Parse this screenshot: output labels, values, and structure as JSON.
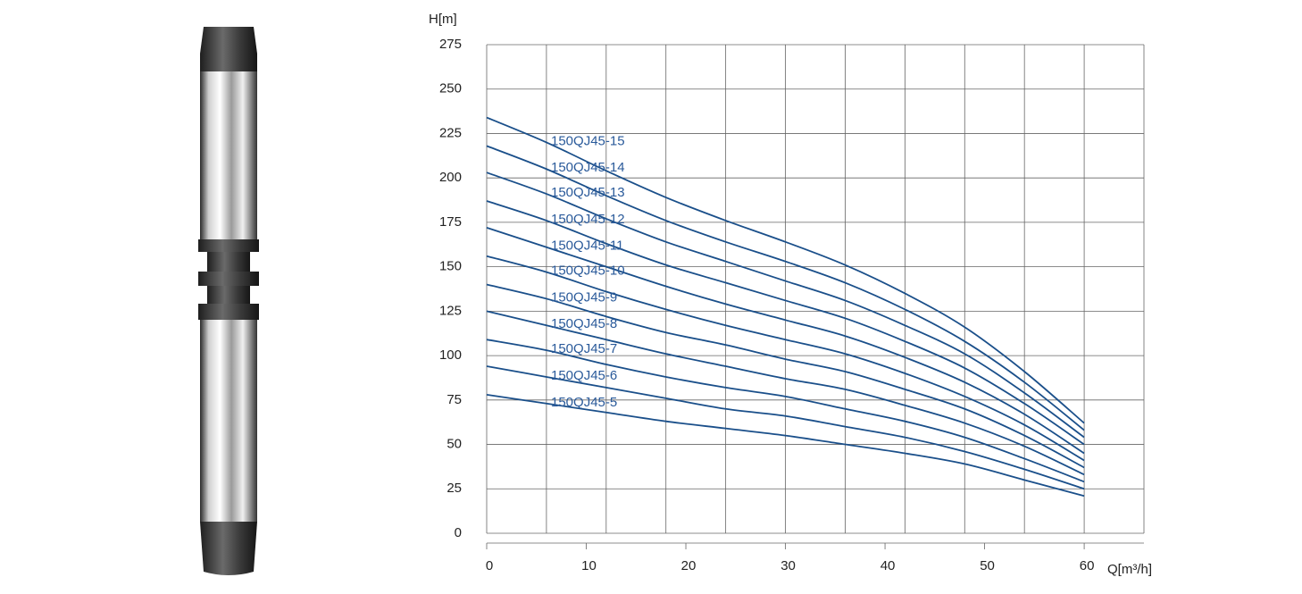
{
  "chart_data": {
    "type": "line",
    "xlabel": "Q[m³/h]",
    "ylabel": "H[m]",
    "x": [
      0,
      6,
      12,
      18,
      24,
      30,
      36,
      42,
      48,
      54,
      60
    ],
    "xlim": [
      0,
      66
    ],
    "xticks": [
      0,
      10,
      20,
      30,
      40,
      50,
      60
    ],
    "xgrid": [
      0,
      6,
      12,
      18,
      24,
      30,
      36,
      42,
      48,
      54,
      60,
      66
    ],
    "ylim": [
      0,
      275
    ],
    "yticks": [
      0,
      25,
      50,
      75,
      100,
      125,
      150,
      175,
      200,
      225,
      250,
      275
    ],
    "grid": true,
    "series": [
      {
        "name": "150QJ45-15",
        "color": "#1a4f8a",
        "values": [
          234,
          220,
          204,
          189,
          176,
          164,
          151,
          135,
          116,
          91,
          62
        ]
      },
      {
        "name": "150QJ45-14",
        "color": "#1a4f8a",
        "values": [
          218,
          205,
          190,
          176,
          164,
          153,
          141,
          126,
          108,
          85,
          58
        ]
      },
      {
        "name": "150QJ45-13",
        "color": "#1a4f8a",
        "values": [
          203,
          191,
          177,
          164,
          153,
          142,
          131,
          117,
          101,
          79,
          54
        ]
      },
      {
        "name": "150QJ45-12",
        "color": "#1a4f8a",
        "values": [
          187,
          176,
          163,
          151,
          141,
          131,
          121,
          108,
          93,
          73,
          50
        ]
      },
      {
        "name": "150QJ45-11",
        "color": "#1a4f8a",
        "values": [
          172,
          161,
          150,
          139,
          129,
          120,
          111,
          99,
          85,
          67,
          45
        ]
      },
      {
        "name": "150QJ45-10",
        "color": "#1a4f8a",
        "values": [
          156,
          147,
          136,
          126,
          117,
          109,
          101,
          90,
          77,
          61,
          41
        ]
      },
      {
        "name": "150QJ45-9",
        "color": "#1a4f8a",
        "values": [
          140,
          132,
          122,
          113,
          106,
          98,
          91,
          81,
          70,
          55,
          37
        ]
      },
      {
        "name": "150QJ45-8",
        "color": "#1a4f8a",
        "values": [
          125,
          117,
          109,
          101,
          94,
          87,
          81,
          72,
          62,
          49,
          33
        ]
      },
      {
        "name": "150QJ45-7",
        "color": "#1a4f8a",
        "values": [
          109,
          103,
          95,
          88,
          82,
          77,
          70,
          63,
          54,
          42,
          29
        ]
      },
      {
        "name": "150QJ45-6",
        "color": "#1a4f8a",
        "values": [
          94,
          88,
          82,
          76,
          70,
          66,
          60,
          54,
          46,
          36,
          25
        ]
      },
      {
        "name": "150QJ45-5",
        "color": "#1a4f8a",
        "values": [
          78,
          73,
          68,
          63,
          59,
          55,
          50,
          45,
          39,
          30,
          21
        ]
      }
    ]
  }
}
